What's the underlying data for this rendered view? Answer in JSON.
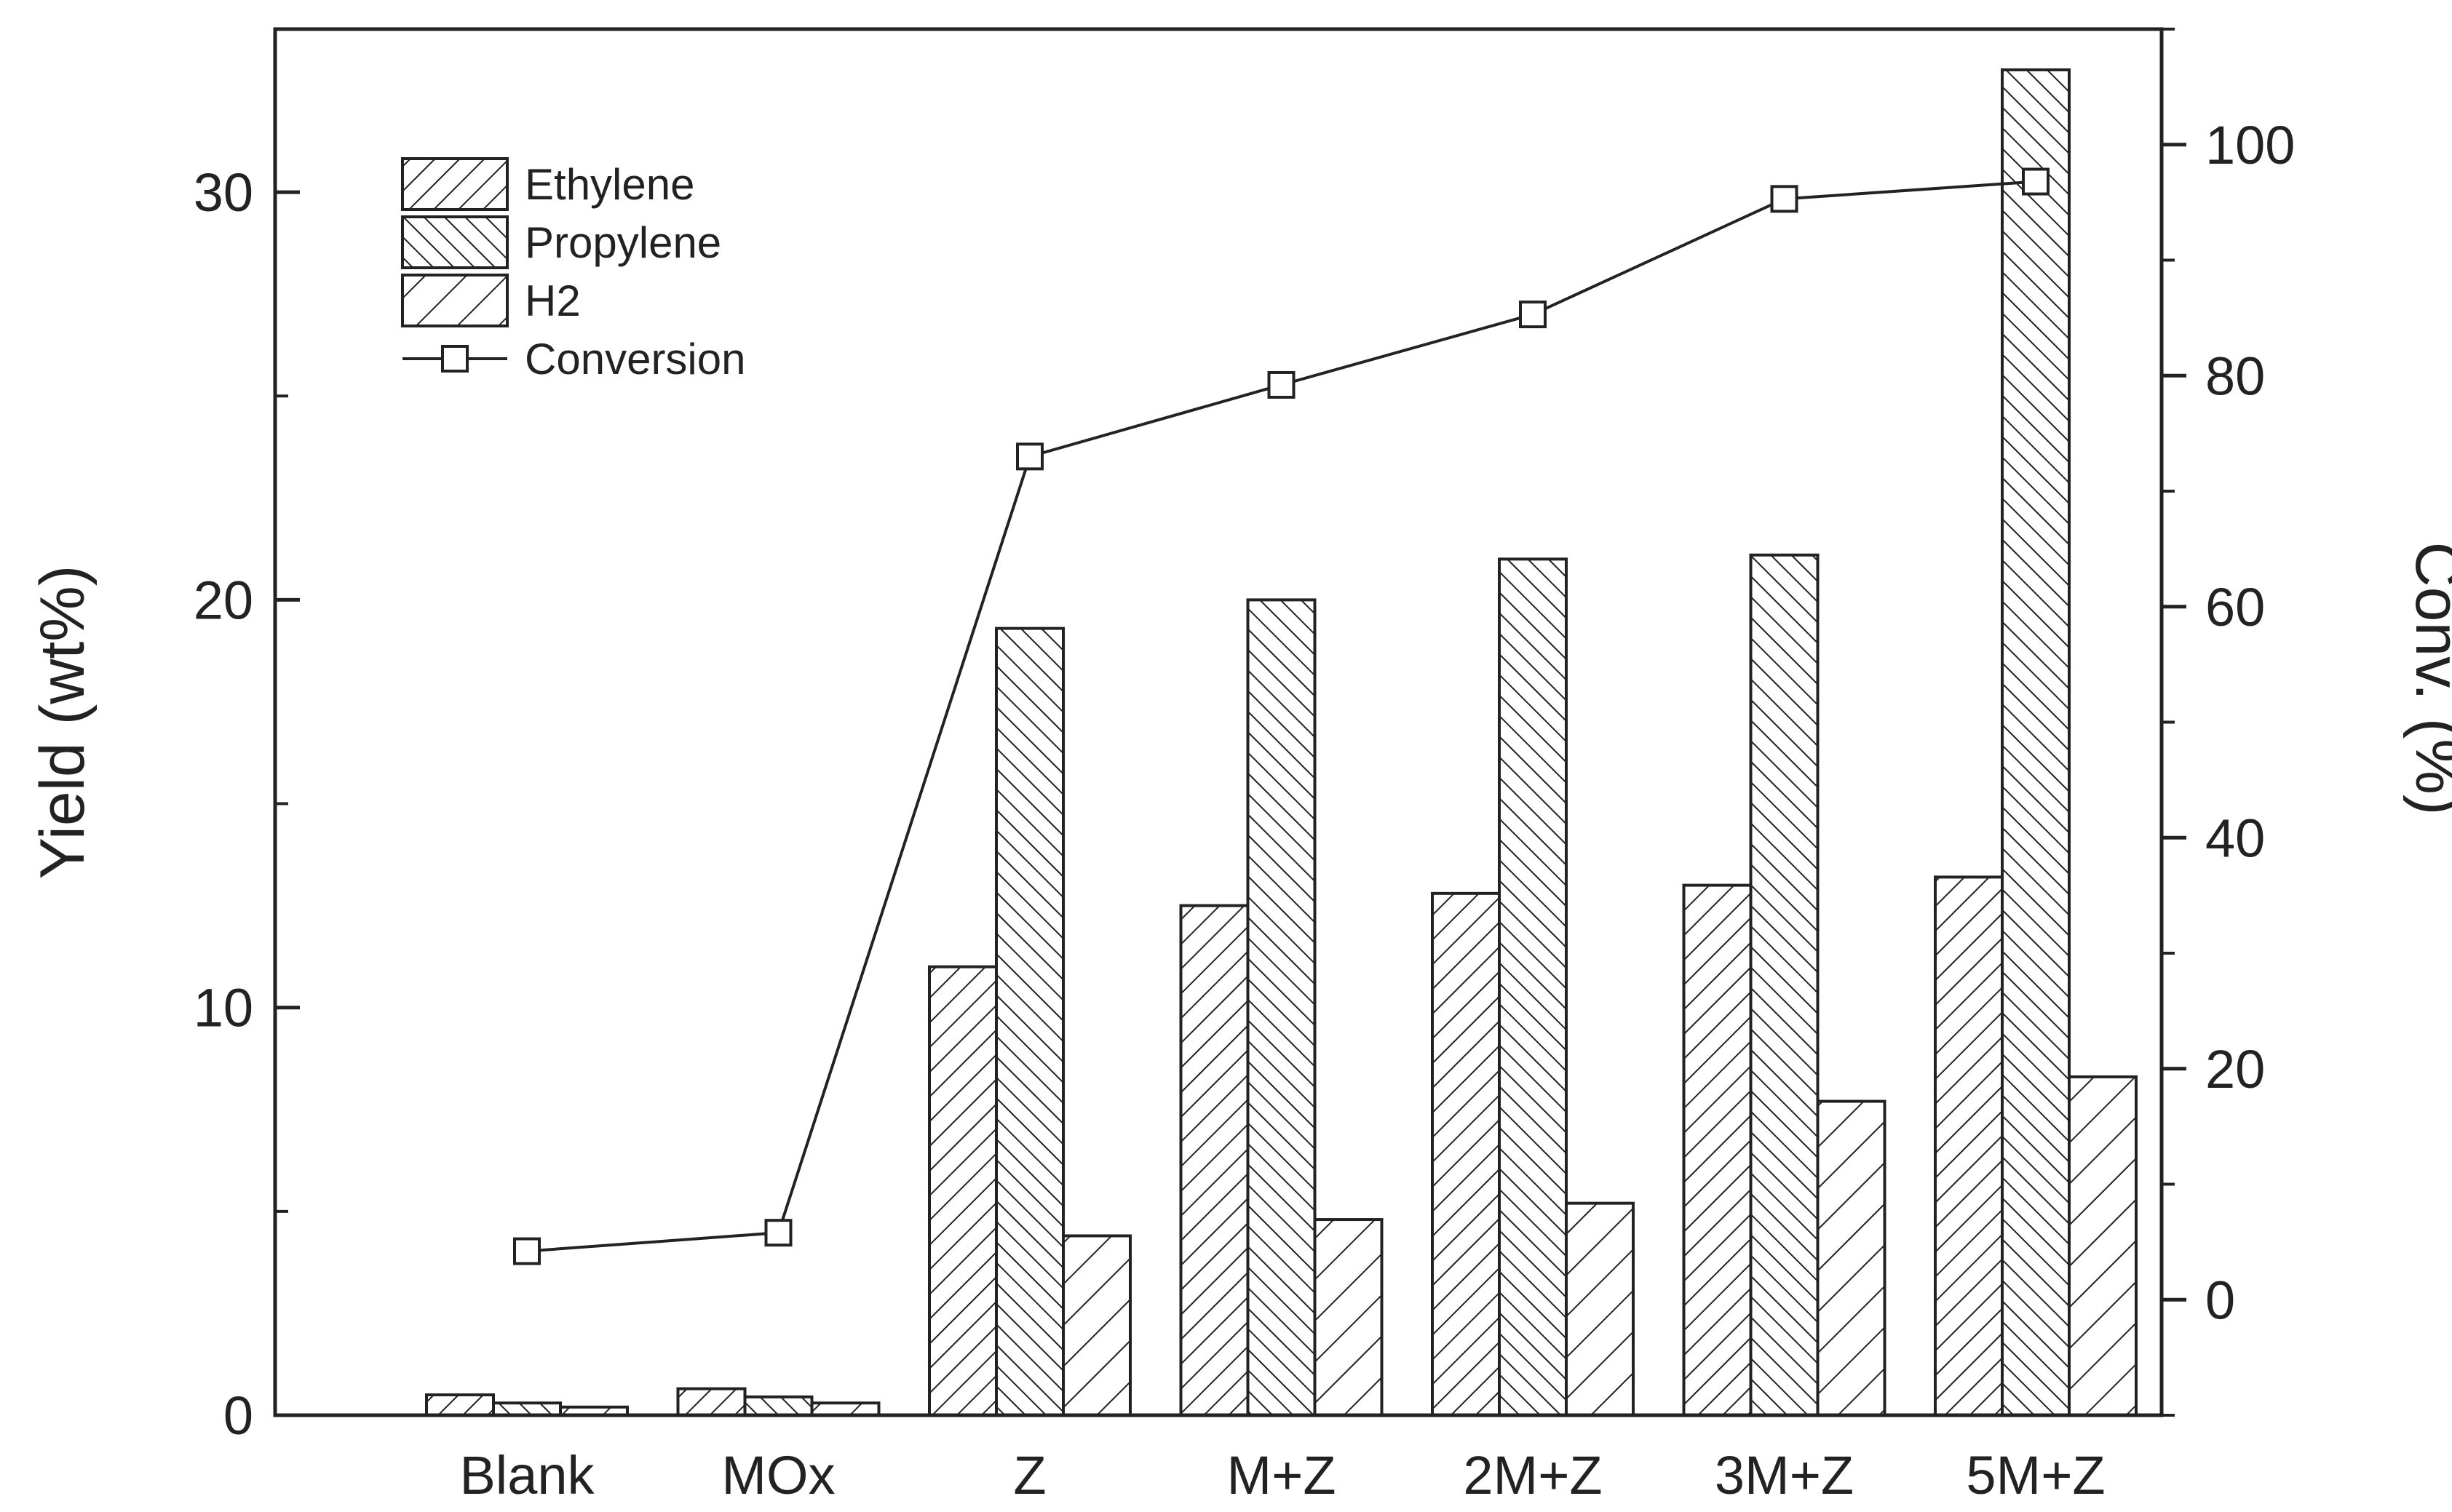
{
  "chart_data": {
    "type": "bar",
    "categories": [
      "Blank",
      "MOx",
      "Z",
      "M+Z",
      "2M+Z",
      "3M+Z",
      "5M+Z"
    ],
    "series": [
      {
        "name": "Ethylene",
        "axis": "left",
        "values": [
          0.5,
          0.65,
          11.0,
          12.5,
          12.8,
          13.0,
          13.2
        ]
      },
      {
        "name": "Propylene",
        "axis": "left",
        "values": [
          0.3,
          0.45,
          19.3,
          20.0,
          21.0,
          21.1,
          33.0
        ]
      },
      {
        "name": "H2",
        "axis": "left",
        "values": [
          0.2,
          0.3,
          4.4,
          4.8,
          5.2,
          7.7,
          8.3
        ]
      }
    ],
    "line_series": {
      "name": "Conversion",
      "axis": "right",
      "marker": "open-square",
      "values": [
        4.2,
        5.8,
        73.0,
        79.2,
        85.3,
        95.3,
        96.8
      ]
    },
    "ylabel": "Yield (wt%)",
    "y2label": "Conv. (%)",
    "ylim": [
      0,
      34
    ],
    "y2lim": [
      -10,
      110
    ],
    "yticks": [
      0,
      10,
      20,
      30
    ],
    "y2ticks": [
      0,
      20,
      40,
      60,
      80,
      100
    ],
    "legend_placement": "top-left",
    "grid": false
  }
}
